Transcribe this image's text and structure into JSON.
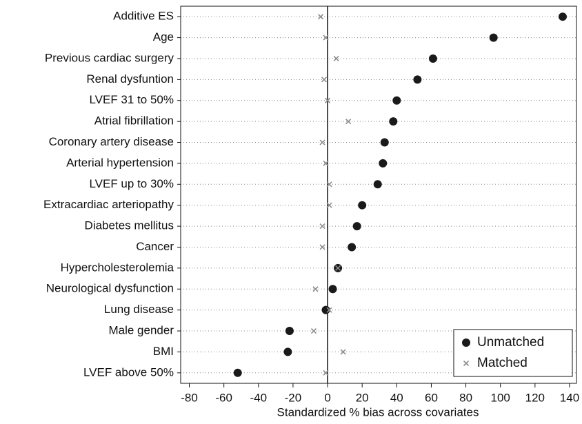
{
  "chart_data": {
    "type": "dot",
    "xlabel": "Standardized % bias across covariates",
    "categories": [
      "Additive ES",
      "Age",
      "Previous cardiac surgery",
      "Renal dysfuntion",
      "LVEF 31 to 50%",
      "Atrial fibrillation",
      "Coronary artery disease",
      "Arterial hypertension",
      "LVEF up to 30%",
      "Extracardiac arteriopathy",
      "Diabetes mellitus",
      "Cancer",
      "Hypercholesterolemia",
      "Neurological dysfunction",
      "Lung disease",
      "Male gender",
      "BMI",
      "LVEF above 50%"
    ],
    "series": [
      {
        "name": "Unmatched",
        "color": "#1a1a1a",
        "marker": "circle",
        "values": [
          136,
          96,
          61,
          52,
          40,
          38,
          33,
          32,
          29,
          20,
          17,
          14,
          6,
          3,
          -1,
          -22,
          -23,
          -52
        ]
      },
      {
        "name": "Matched",
        "color": "#8c8c8c",
        "marker": "x",
        "values": [
          -4,
          -1,
          5,
          -2,
          0,
          12,
          -3,
          -1,
          1,
          1,
          -3,
          -3,
          6,
          -7,
          1,
          -8,
          9,
          -1
        ]
      }
    ],
    "xlim": [
      -85,
      144
    ],
    "xticks": [
      -80,
      -60,
      -40,
      -20,
      0,
      20,
      40,
      60,
      80,
      100,
      120,
      140
    ],
    "legend": "lower-right"
  }
}
